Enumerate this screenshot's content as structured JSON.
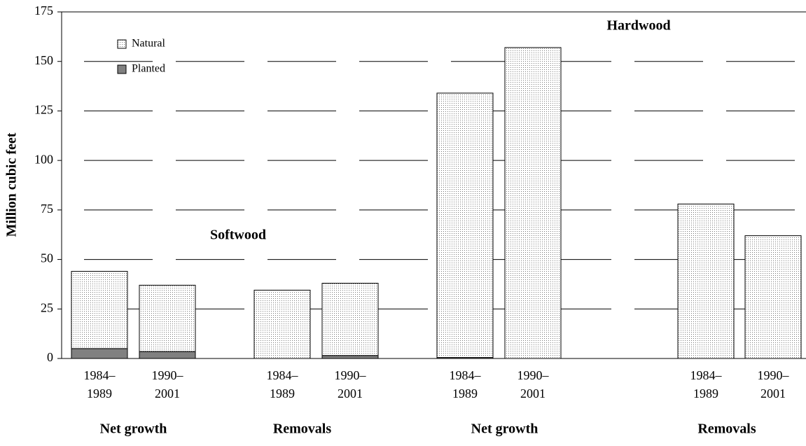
{
  "chart_data": {
    "type": "bar",
    "stacked": true,
    "y_label": "Million cubic feet",
    "categories": [
      "1984–1989",
      "1990–2001",
      "1984–1989",
      "1990–2001",
      "1984–1989",
      "1990–2001",
      "1984–1989",
      "1990–2001"
    ],
    "groups": [
      "Net growth",
      "Removals",
      "Net growth",
      "Removals"
    ],
    "annotations": [
      "Softwood",
      "Hardwood"
    ],
    "series": [
      {
        "name": "Planted",
        "color": "#808080",
        "values": [
          5,
          3.5,
          0,
          1.5,
          0.5,
          0,
          0,
          0
        ]
      },
      {
        "name": "Natural",
        "color": "#e4e4e4",
        "values": [
          39,
          33.5,
          34.5,
          36.5,
          133.5,
          157,
          78,
          62
        ]
      }
    ],
    "ylim": [
      0,
      175
    ],
    "yticks": [
      0,
      25,
      50,
      75,
      100,
      125,
      150,
      175
    ],
    "grid": true
  }
}
